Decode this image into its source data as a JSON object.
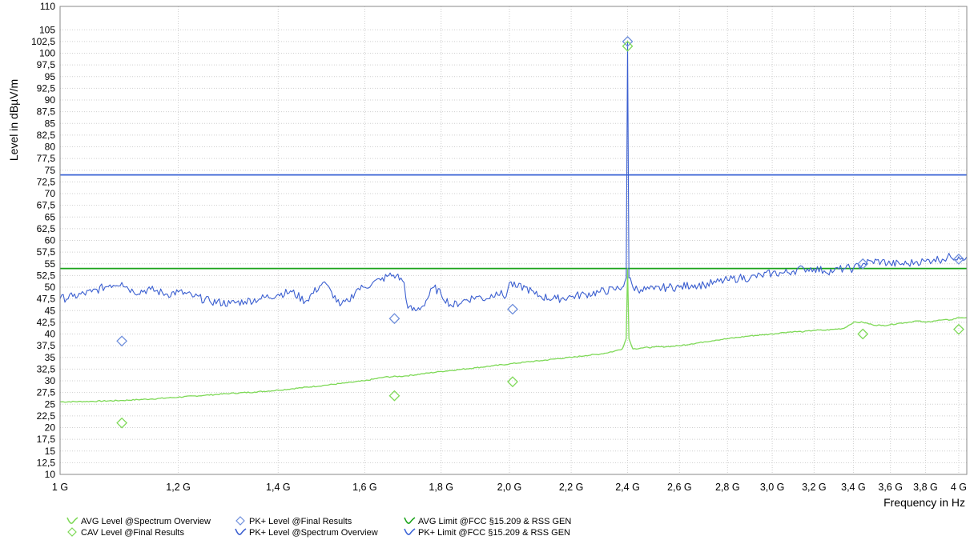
{
  "chart_data": {
    "type": "line",
    "title": "",
    "xlabel": "Frequency in Hz",
    "ylabel": "Level in dBµV/m",
    "x_scale": "log",
    "xlim": [
      1000000000,
      4050000000
    ],
    "ylim": [
      10,
      110
    ],
    "y_ticks": [
      "10",
      "12,5",
      "15",
      "17,5",
      "20",
      "22,5",
      "25",
      "27,5",
      "30",
      "32,5",
      "35",
      "37,5",
      "40",
      "42,5",
      "45",
      "47,5",
      "50",
      "52,5",
      "55",
      "57,5",
      "60",
      "62,5",
      "65",
      "67,5",
      "70",
      "72,5",
      "75",
      "77,5",
      "80",
      "82,5",
      "85",
      "87,5",
      "90",
      "92,5",
      "95",
      "97,5",
      "100",
      "102,5",
      "105",
      "110"
    ],
    "x_ticks": [
      {
        "label": "1 G",
        "value": 1000000000
      },
      {
        "label": "1,2 G",
        "value": 1200000000
      },
      {
        "label": "1,4 G",
        "value": 1400000000
      },
      {
        "label": "1,6 G",
        "value": 1600000000
      },
      {
        "label": "1,8 G",
        "value": 1800000000
      },
      {
        "label": "2,0 G",
        "value": 2000000000
      },
      {
        "label": "2,2 G",
        "value": 2200000000
      },
      {
        "label": "2,4 G",
        "value": 2400000000
      },
      {
        "label": "2,6 G",
        "value": 2600000000
      },
      {
        "label": "2,8 G",
        "value": 2800000000
      },
      {
        "label": "3,0 G",
        "value": 3000000000
      },
      {
        "label": "3,2 G",
        "value": 3200000000
      },
      {
        "label": "3,4 G",
        "value": 3400000000
      },
      {
        "label": "3,6 G",
        "value": 3600000000
      },
      {
        "label": "3,8 G",
        "value": 3800000000
      },
      {
        "label": "4 G",
        "value": 4000000000
      }
    ],
    "grid": true,
    "legend_position": "bottom",
    "series": [
      {
        "name": "AVG Level @Spectrum Overview",
        "kind": "line",
        "color": "#7ed957",
        "x": [
          1000000000,
          1050000000,
          1100000000,
          1150000000,
          1200000000,
          1250000000,
          1300000000,
          1350000000,
          1400000000,
          1450000000,
          1500000000,
          1550000000,
          1600000000,
          1650000000,
          1700000000,
          1750000000,
          1800000000,
          1850000000,
          1900000000,
          1950000000,
          2000000000,
          2050000000,
          2100000000,
          2150000000,
          2200000000,
          2250000000,
          2300000000,
          2350000000,
          2380000000,
          2395000000,
          2400000000,
          2405000000,
          2420000000,
          2450000000,
          2500000000,
          2550000000,
          2600000000,
          2650000000,
          2700000000,
          2750000000,
          2800000000,
          2850000000,
          2900000000,
          2950000000,
          3000000000,
          3050000000,
          3100000000,
          3150000000,
          3200000000,
          3250000000,
          3300000000,
          3350000000,
          3400000000,
          3450000000,
          3500000000,
          3550000000,
          3600000000,
          3650000000,
          3700000000,
          3750000000,
          3800000000,
          3850000000,
          3900000000,
          3950000000,
          4000000000,
          4050000000
        ],
        "y": [
          25.5,
          25.6,
          25.8,
          26.1,
          26.5,
          26.9,
          27.3,
          27.6,
          28.0,
          28.5,
          29.0,
          29.5,
          30.0,
          30.8,
          31.0,
          31.5,
          32.0,
          32.4,
          32.8,
          33.2,
          33.6,
          34.0,
          34.3,
          34.7,
          35.0,
          35.4,
          35.7,
          36.3,
          36.8,
          39.0,
          54.0,
          39.0,
          36.8,
          37.0,
          37.2,
          37.3,
          37.5,
          37.9,
          38.3,
          38.7,
          39.0,
          39.3,
          39.6,
          39.8,
          40.0,
          40.3,
          40.5,
          40.5,
          40.8,
          40.8,
          41.0,
          41.2,
          42.5,
          42.5,
          42.0,
          41.8,
          42.0,
          42.3,
          42.5,
          42.8,
          42.5,
          42.8,
          43.0,
          43.0,
          43.5,
          43.5
        ]
      },
      {
        "name": "PK+ Level @Spectrum Overview",
        "kind": "line",
        "color": "#3b5fd0",
        "x": [
          1000000000,
          1020000000,
          1050000000,
          1080000000,
          1100000000,
          1120000000,
          1150000000,
          1180000000,
          1200000000,
          1230000000,
          1260000000,
          1300000000,
          1330000000,
          1360000000,
          1400000000,
          1430000000,
          1460000000,
          1500000000,
          1520000000,
          1540000000,
          1560000000,
          1580000000,
          1600000000,
          1620000000,
          1640000000,
          1660000000,
          1680000000,
          1700000000,
          1710000000,
          1730000000,
          1750000000,
          1780000000,
          1800000000,
          1830000000,
          1860000000,
          1900000000,
          1930000000,
          1960000000,
          1990000000,
          2000000000,
          2020000000,
          2050000000,
          2080000000,
          2100000000,
          2150000000,
          2200000000,
          2250000000,
          2300000000,
          2350000000,
          2380000000,
          2395000000,
          2400000000,
          2405000000,
          2420000000,
          2450000000,
          2500000000,
          2550000000,
          2600000000,
          2650000000,
          2700000000,
          2750000000,
          2800000000,
          2850000000,
          2900000000,
          2950000000,
          3000000000,
          3050000000,
          3100000000,
          3150000000,
          3200000000,
          3250000000,
          3300000000,
          3350000000,
          3400000000,
          3450000000,
          3500000000,
          3550000000,
          3600000000,
          3650000000,
          3700000000,
          3750000000,
          3800000000,
          3850000000,
          3900000000,
          3950000000,
          4000000000,
          4050000000
        ],
        "y": [
          47.5,
          48.0,
          49.0,
          50.5,
          51.0,
          49.0,
          49.5,
          48.5,
          49.0,
          48.0,
          47.0,
          46.5,
          47.0,
          47.5,
          48.5,
          49.0,
          47.0,
          51.0,
          49.0,
          46.0,
          47.0,
          49.5,
          50.0,
          51.0,
          51.5,
          52.5,
          52.5,
          51.0,
          45.5,
          45.0,
          46.0,
          50.0,
          48.5,
          46.0,
          47.0,
          48.0,
          47.5,
          49.0,
          48.0,
          51.0,
          50.0,
          50.0,
          48.5,
          48.0,
          47.5,
          48.0,
          48.5,
          49.0,
          49.5,
          50.0,
          52.0,
          102.5,
          52.0,
          50.0,
          49.5,
          49.5,
          50.0,
          50.0,
          50.5,
          50.5,
          51.0,
          51.5,
          52.0,
          52.0,
          52.5,
          53.0,
          53.0,
          53.5,
          54.0,
          54.0,
          53.5,
          53.5,
          54.0,
          54.0,
          55.0,
          55.5,
          55.5,
          55.0,
          55.0,
          55.0,
          55.5,
          55.5,
          56.0,
          56.0,
          56.5,
          56.5,
          56.5
        ]
      },
      {
        "name": "AVG Limit @FCC §15.209 & RSS GEN",
        "kind": "limit",
        "color": "#1aa31a",
        "x": [
          1000000000,
          4050000000
        ],
        "y": [
          54,
          54
        ]
      },
      {
        "name": "PK+ Limit @FCC §15.209 & RSS GEN",
        "kind": "limit",
        "color": "#3a63d6",
        "x": [
          1000000000,
          4050000000
        ],
        "y": [
          74,
          74
        ]
      },
      {
        "name": "PK+ Level @Final Results",
        "kind": "marker",
        "color": "#6f8fdc",
        "x": [
          1100000000,
          1675000000,
          2010000000,
          2400000000,
          3450000000,
          4000000000
        ],
        "y": [
          38.5,
          43.3,
          45.3,
          102.5,
          55.0,
          56.0
        ]
      },
      {
        "name": "CAV Level @Final Results",
        "kind": "marker",
        "color": "#7ed957",
        "x": [
          1100000000,
          1675000000,
          2010000000,
          2400000000,
          3450000000,
          4000000000
        ],
        "y": [
          21.0,
          26.8,
          29.8,
          101.5,
          40.0,
          41.0
        ]
      }
    ]
  },
  "legend": {
    "items": [
      {
        "label": "AVG Level @Spectrum Overview",
        "symbol": "line",
        "color": "#7ed957"
      },
      {
        "label": "CAV Level @Final Results",
        "symbol": "diamond",
        "color": "#7ed957"
      },
      {
        "label": "PK+ Level @Final Results",
        "symbol": "diamond",
        "color": "#6f8fdc"
      },
      {
        "label": "PK+ Level @Spectrum Overview",
        "symbol": "line",
        "color": "#3b5fd0"
      },
      {
        "label": "AVG Limit @FCC §15.209 & RSS GEN",
        "symbol": "line",
        "color": "#1aa31a"
      },
      {
        "label": "PK+ Limit @FCC §15.209 & RSS GEN",
        "symbol": "line",
        "color": "#3a63d6"
      }
    ]
  }
}
